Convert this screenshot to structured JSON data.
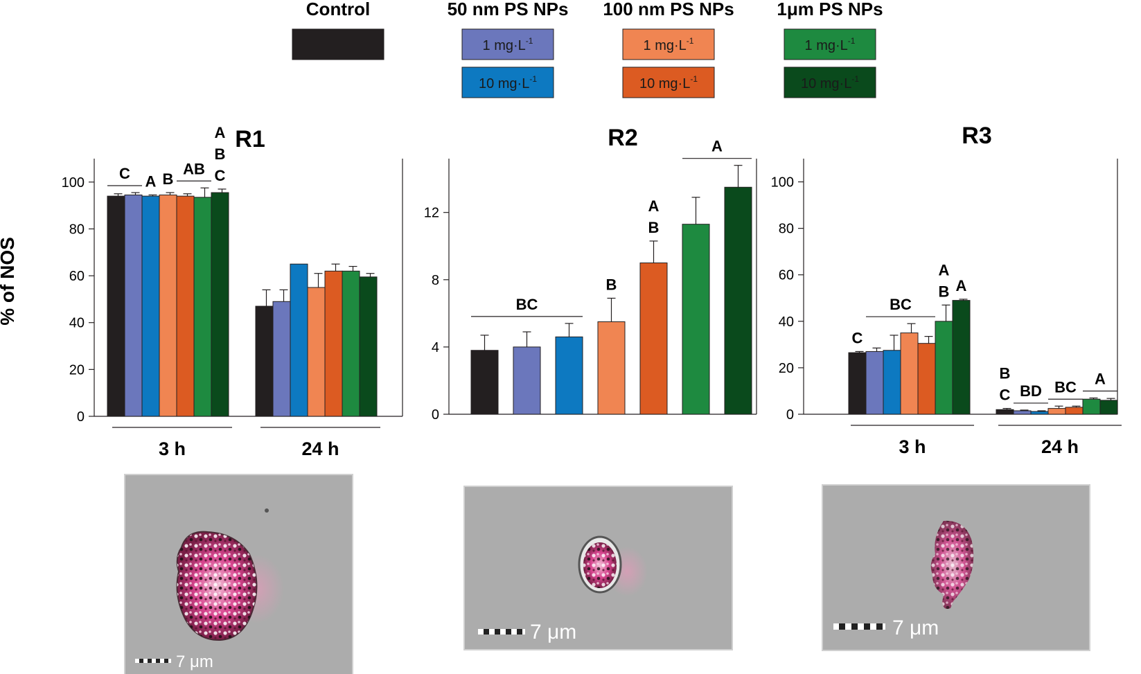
{
  "legend": {
    "groups": [
      {
        "name": "Control",
        "items": [
          {
            "color": "#231f20",
            "label": "",
            "unit_sup": ""
          }
        ]
      },
      {
        "name": "50 nm PS NPs",
        "items": [
          {
            "color": "#6b77bc",
            "label": "1 mg·L",
            "unit_sup": "-1"
          },
          {
            "color": "#0d79c1",
            "label": "10 mg·L",
            "unit_sup": "-1"
          }
        ]
      },
      {
        "name": "100 nm PS NPs",
        "items": [
          {
            "color": "#f08552",
            "label": "1 mg·L",
            "unit_sup": "-1"
          },
          {
            "color": "#dc5b22",
            "label": "10 mg·L",
            "unit_sup": "-1"
          }
        ]
      },
      {
        "name": "1μm PS NPs",
        "items": [
          {
            "color": "#1e8a40",
            "label": "1 mg·L",
            "unit_sup": "-1"
          },
          {
            "color": "#0a4a1c",
            "label": "10 mg·L",
            "unit_sup": "-1"
          }
        ]
      }
    ]
  },
  "series_colors": [
    "#231f20",
    "#6b77bc",
    "#0d79c1",
    "#f08552",
    "#dc5b22",
    "#1e8a40",
    "#0a4a1c"
  ],
  "ylabel": "% of NOS",
  "chart_data": [
    {
      "type": "bar",
      "title": "R1",
      "ylim": [
        0,
        110
      ],
      "yticks": [
        0,
        20,
        40,
        60,
        80,
        100
      ],
      "categories": [
        "3 h",
        "24 h"
      ],
      "values": [
        [
          94,
          94.5,
          94,
          94.5,
          94,
          93.5,
          95.5
        ],
        [
          47,
          49,
          65,
          55,
          62,
          62,
          59.5
        ]
      ],
      "errors": [
        [
          1,
          1,
          0.5,
          1,
          1,
          4,
          1.5
        ],
        [
          7,
          5,
          0,
          6,
          3,
          2,
          1.5
        ]
      ],
      "annotations": [
        {
          "text": "C",
          "line": [
            0,
            1
          ]
        },
        {
          "text": "A",
          "over": 2
        },
        {
          "text": "B",
          "over": 3
        },
        {
          "text": "AB",
          "line": [
            4,
            5
          ]
        },
        {
          "text": "A",
          "over": 6,
          "stack": 2
        },
        {
          "text": "B",
          "over": 6,
          "stack": 1
        },
        {
          "text": "C",
          "over": 6,
          "stack": 0
        }
      ]
    },
    {
      "type": "bar",
      "title": "R2",
      "ylim": [
        0,
        15.2
      ],
      "yticks": [
        0,
        4,
        8,
        12
      ],
      "categories": [
        ""
      ],
      "values": [
        [
          3.8,
          4.0,
          4.6,
          5.5,
          9.0,
          11.3,
          13.5
        ]
      ],
      "errors": [
        [
          0.9,
          0.9,
          0.8,
          1.4,
          1.3,
          1.6,
          1.3
        ]
      ],
      "annotations": [
        {
          "text": "BC",
          "line": [
            0,
            2
          ]
        },
        {
          "text": "B",
          "over": 3
        },
        {
          "text": "A",
          "over": 4,
          "stack": 1
        },
        {
          "text": "B",
          "over": 4,
          "stack": 0
        },
        {
          "text": "A",
          "line": [
            5,
            6
          ]
        }
      ]
    },
    {
      "type": "bar",
      "title": "R3",
      "ylim": [
        0,
        110
      ],
      "yticks": [
        0,
        20,
        40,
        60,
        80,
        100
      ],
      "categories": [
        "3 h",
        "24 h"
      ],
      "values": [
        [
          26.5,
          27,
          27.5,
          35,
          30.5,
          40,
          49
        ],
        [
          2,
          1.5,
          1.2,
          2.5,
          3,
          6.5,
          6
        ]
      ],
      "errors": [
        [
          0.5,
          1.5,
          6.5,
          4,
          3,
          7,
          0.5
        ],
        [
          0.5,
          0.3,
          0.3,
          1,
          0.5,
          0.5,
          0.8
        ]
      ],
      "annotations": [
        {
          "text": "C",
          "over": 0
        },
        {
          "text": "BC",
          "line": [
            1,
            4
          ]
        },
        {
          "text": "A",
          "over": 5,
          "stack": 1
        },
        {
          "text": "B",
          "over": 5,
          "stack": 0
        },
        {
          "text": "A",
          "over": 6
        },
        {
          "text": "B",
          "over": 0,
          "stack": 1,
          "g": 1
        },
        {
          "text": "C",
          "over": 0,
          "stack": 0,
          "g": 1
        },
        {
          "text": "BD",
          "line": [
            1,
            2
          ],
          "g": 1
        },
        {
          "text": "BC",
          "line": [
            3,
            4
          ],
          "g": 1
        },
        {
          "text": "A",
          "line": [
            5,
            6
          ],
          "g": 1
        }
      ]
    }
  ],
  "micrographs": [
    {
      "scale_label": "7 μm"
    },
    {
      "scale_label": "7 μm"
    },
    {
      "scale_label": "7 μm"
    }
  ]
}
